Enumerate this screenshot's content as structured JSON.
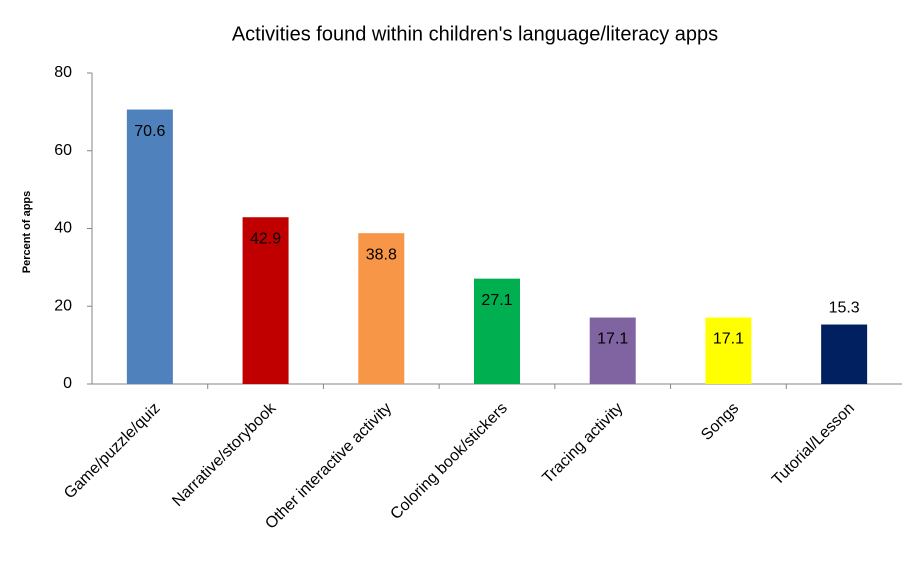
{
  "chart_data": {
    "type": "bar",
    "title": "Activities found within children's language/literacy apps",
    "y_label": "Percent of apps",
    "categories": [
      "Game/puzzle/quiz",
      "Narrative/storybook",
      "Other interactive activity",
      "Coloring book/stickers",
      "Tracing activity",
      "Songs",
      "Tutorial/Lesson"
    ],
    "values": [
      70.6,
      42.9,
      38.8,
      27.1,
      17.1,
      17.1,
      15.3
    ],
    "colors": [
      "#4f81bd",
      "#c00000",
      "#f79646",
      "#00b050",
      "#8064a2",
      "#ffff00",
      "#002060"
    ],
    "ylim": [
      0,
      80
    ],
    "yticks": [
      0,
      20,
      40,
      60,
      80
    ],
    "grid": false
  }
}
